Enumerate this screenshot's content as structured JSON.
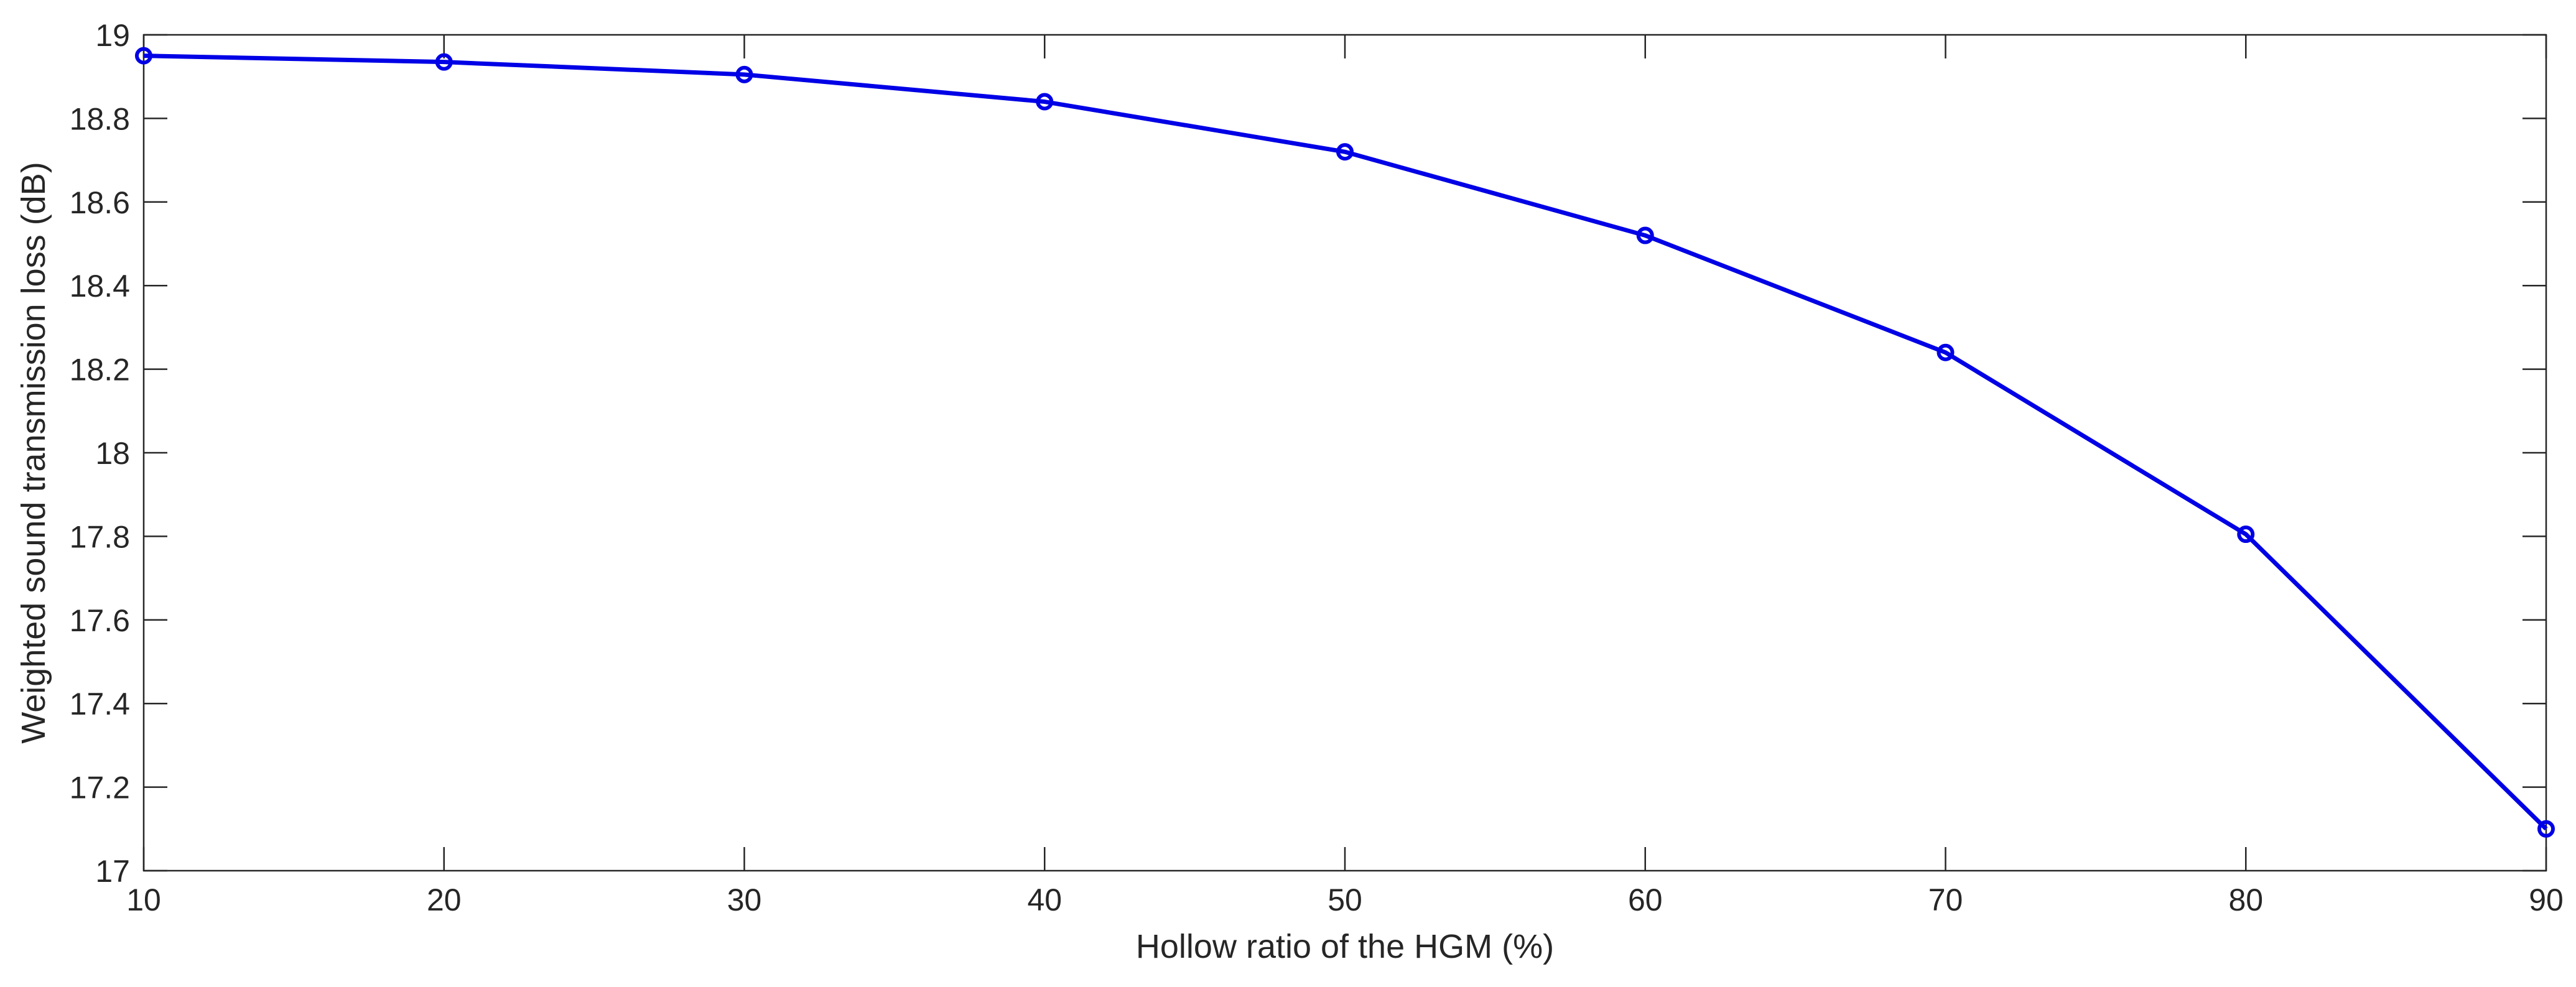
{
  "chart_data": {
    "type": "line",
    "title": "",
    "xlabel": "Hollow ratio of the HGM (%)",
    "ylabel": "Weighted sound transmission loss (dB)",
    "xlim": [
      10,
      90
    ],
    "ylim": [
      17,
      19
    ],
    "xticks": [
      10,
      20,
      30,
      40,
      50,
      60,
      70,
      80,
      90
    ],
    "yticks": [
      17,
      17.2,
      17.4,
      17.6,
      17.8,
      18,
      18.2,
      18.4,
      18.6,
      18.8,
      19
    ],
    "xtick_labels": [
      "10",
      "20",
      "30",
      "40",
      "50",
      "60",
      "70",
      "80",
      "90"
    ],
    "ytick_labels": [
      "17",
      "17.2",
      "17.4",
      "17.6",
      "17.8",
      "18",
      "18.2",
      "18.4",
      "18.6",
      "18.8",
      "19"
    ],
    "grid": false,
    "box": true,
    "series": [
      {
        "color": "#0000E6",
        "marker": "circle",
        "x": [
          10,
          20,
          30,
          40,
          50,
          60,
          70,
          80,
          90
        ],
        "y": [
          18.95,
          18.935,
          18.905,
          18.84,
          18.72,
          18.52,
          18.24,
          17.805,
          17.1
        ]
      }
    ]
  }
}
